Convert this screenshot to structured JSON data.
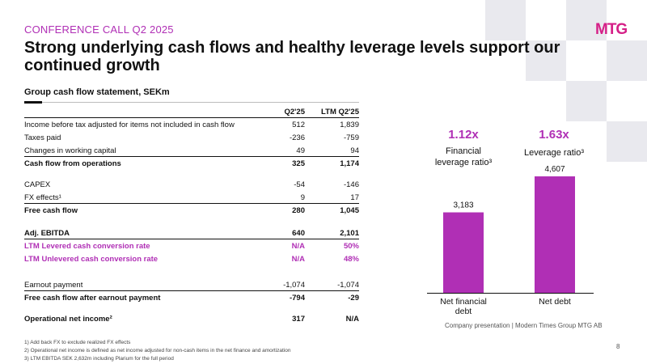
{
  "header": {
    "kicker": "CONFERENCE CALL Q2 2025",
    "logo": "MTG",
    "title": "Strong underlying cash flows and healthy leverage levels support our continued growth"
  },
  "table": {
    "subtitle": "Group cash flow statement, SEKm",
    "columns": [
      "Q2'25",
      "LTM Q2'25"
    ],
    "rows": [
      {
        "label": "Income before tax adjusted for items not included in cash flow",
        "q": "512",
        "ltm": "1,839"
      },
      {
        "label": "Taxes paid",
        "q": "-236",
        "ltm": "-759"
      },
      {
        "label": "Changes in working capital",
        "q": "49",
        "ltm": "94"
      },
      {
        "label": "Cash flow from operations",
        "q": "325",
        "ltm": "1,174"
      },
      {
        "label": "CAPEX",
        "q": "-54",
        "ltm": "-146"
      },
      {
        "label": "FX effects¹",
        "q": "9",
        "ltm": "17"
      },
      {
        "label": "Free cash flow",
        "q": "280",
        "ltm": "1,045"
      },
      {
        "label": "Adj. EBITDA",
        "q": "640",
        "ltm": "2,101"
      },
      {
        "label": "LTM Levered cash conversion rate",
        "q": "N/A",
        "ltm": "50%"
      },
      {
        "label": "LTM Unlevered cash conversion rate",
        "q": "N/A",
        "ltm": "48%"
      },
      {
        "label": "Earnout payment",
        "q": "-1,074",
        "ltm": "-1,074"
      },
      {
        "label": "Free cash flow after earnout payment",
        "q": "-794",
        "ltm": "-29"
      },
      {
        "label": "Operational net income²",
        "q": "317",
        "ltm": "N/A"
      }
    ]
  },
  "footnotes": [
    "1) Add back FX to exclude realized FX effects",
    "2) Operational net income is defined as net income adjusted for non-cash items in the net finance and amortization",
    "3) LTM EBITDA SEK 2,632m including Plarium for the full period"
  ],
  "kpis": [
    {
      "value": "1.12x",
      "label": "Financial leverage ratio³"
    },
    {
      "value": "1.63x",
      "label": "Leverage ratio³"
    }
  ],
  "chart_data": {
    "type": "bar",
    "categories": [
      "Net financial debt",
      "Net debt"
    ],
    "values": [
      3183,
      4607
    ],
    "value_labels": [
      "3,183",
      "4,607"
    ],
    "ylim": [
      0,
      4800
    ],
    "grid": false,
    "color": "#b02fb5"
  },
  "footer": {
    "company": "Company presentation | Modern Times Group MTG AB",
    "page": "8"
  }
}
